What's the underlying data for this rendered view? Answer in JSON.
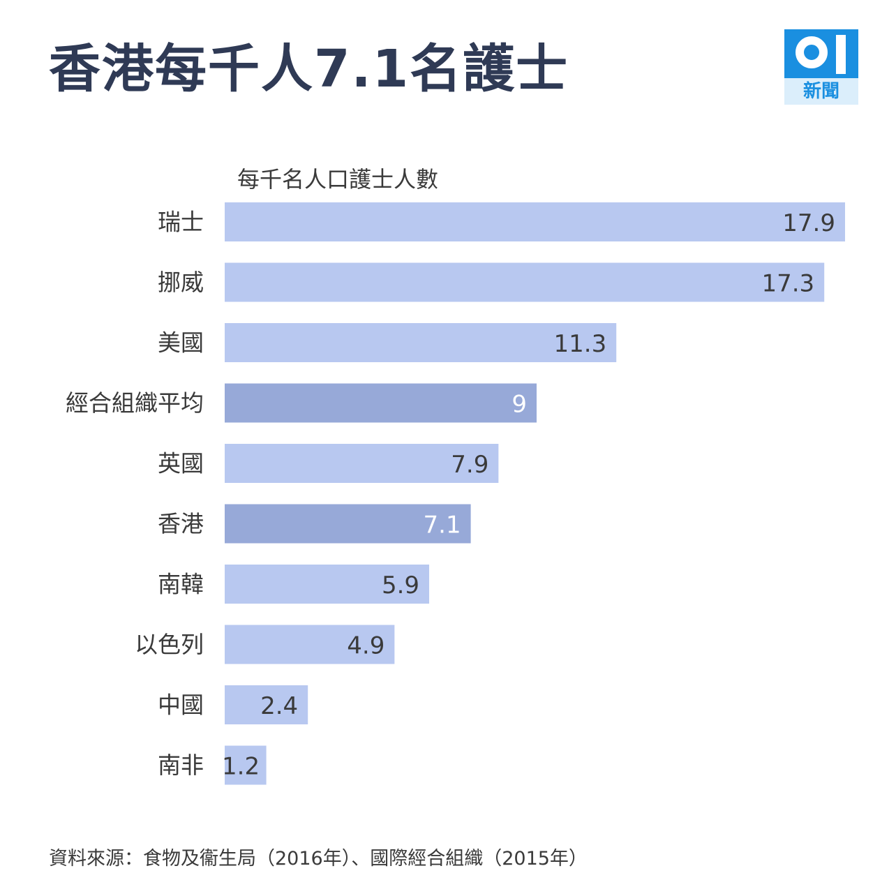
{
  "title": "香港每千人7.1名護士",
  "logo": {
    "text": "新聞",
    "icon": "hk01-logo",
    "color": "#1a8fe0"
  },
  "chart_data": {
    "type": "bar",
    "orientation": "horizontal",
    "title": "香港每千人7.1名護士",
    "unit_label": "每千名人口護士人數",
    "categories": [
      "瑞士",
      "挪威",
      "美國",
      "經合組織平均",
      "英國",
      "香港",
      "南韓",
      "以色列",
      "中國",
      "南非"
    ],
    "values": [
      17.9,
      17.3,
      11.3,
      9,
      7.9,
      7.1,
      5.9,
      4.9,
      2.4,
      1.2
    ],
    "value_labels": [
      "17.9",
      "17.3",
      "11.3",
      "9",
      "7.9",
      "7.1",
      "5.9",
      "4.9",
      "2.4",
      "1.2"
    ],
    "highlight": [
      "經合組織平均",
      "香港"
    ],
    "xlim": [
      0,
      17.9
    ],
    "grid": false,
    "colors": {
      "bar": "#b8c8f0",
      "highlight": "#97a9d8",
      "label_on_light": "#3a3a3a",
      "label_on_dark": "#ffffff"
    }
  },
  "source": "資料來源：食物及衞生局（2016年）、國際經合組織（2015年）"
}
